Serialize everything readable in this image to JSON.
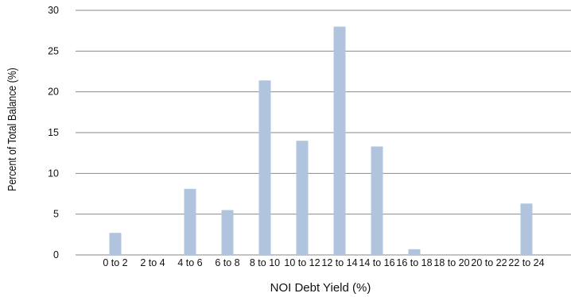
{
  "chart_data": {
    "type": "bar",
    "xlabel": "NOI Debt Yield (%)",
    "ylabel": "Percent of Total Balance (%)",
    "ylim": [
      0,
      30
    ],
    "yticks": [
      0,
      5,
      10,
      15,
      20,
      25,
      30
    ],
    "grid": true,
    "categories": [
      "0 to 2",
      "2 to 4",
      "4 to 6",
      "6 to 8",
      "8 to 10",
      "10 to 12",
      "12 to 14",
      "14 to 16",
      "16 to 18",
      "18 to 20",
      "20 to 22",
      "22 to 24"
    ],
    "values": [
      2.7,
      0,
      8.1,
      5.5,
      21.4,
      14.0,
      28.0,
      13.3,
      0.7,
      0,
      0,
      6.3
    ],
    "colors": {
      "bar": "#b0c4de",
      "grid": "#8a8a8a"
    }
  }
}
